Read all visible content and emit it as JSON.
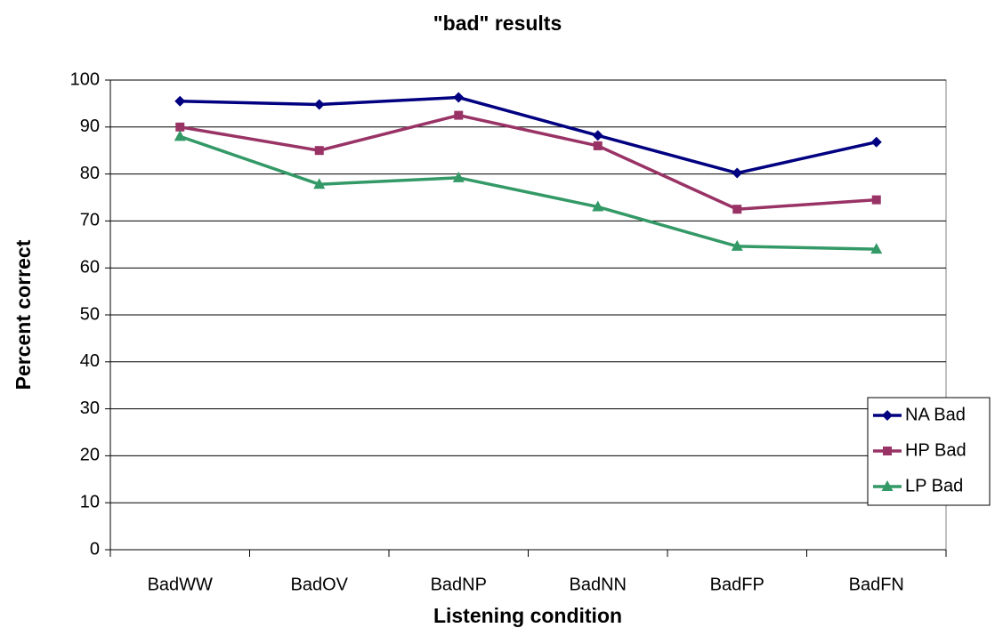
{
  "chart_data": {
    "type": "line",
    "title": "\"bad\" results",
    "x_label": "Listening condition",
    "y_label": "Percent correct",
    "categories": [
      "BadWW",
      "BadOV",
      "BadNP",
      "BadNN",
      "BadFP",
      "BadFN"
    ],
    "series": [
      {
        "name": "NA Bad",
        "color": "#000080",
        "marker": "diamond",
        "values": [
          95.5,
          94.8,
          96.3,
          88.2,
          80.2,
          86.8
        ]
      },
      {
        "name": "HP Bad",
        "color": "#993366",
        "marker": "square",
        "values": [
          90,
          85,
          92.5,
          86,
          72.5,
          74.5
        ]
      },
      {
        "name": "LP Bad",
        "color": "#339966",
        "marker": "triangle",
        "values": [
          88,
          77.8,
          79.2,
          73,
          64.6,
          64
        ]
      }
    ],
    "ylim": [
      0,
      100
    ],
    "yticks": [
      0,
      10,
      20,
      30,
      40,
      50,
      60,
      70,
      80,
      90,
      100
    ],
    "grid": true,
    "legend": "right"
  }
}
